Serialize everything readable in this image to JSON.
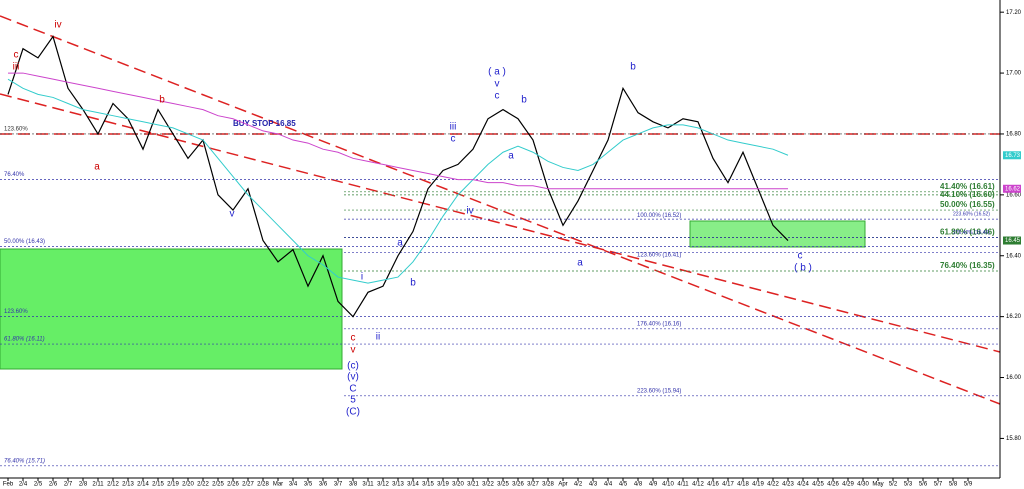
{
  "chart_data": {
    "type": "line",
    "categories": [
      "Feb",
      "2/4",
      "2/5",
      "2/6",
      "2/7",
      "2/8",
      "2/11",
      "2/12",
      "2/13",
      "2/14",
      "2/15",
      "2/19",
      "2/20",
      "2/22",
      "2/25",
      "2/26",
      "2/27",
      "2/28",
      "Mar",
      "3/4",
      "3/5",
      "3/6",
      "3/7",
      "3/8",
      "3/11",
      "3/12",
      "3/13",
      "3/14",
      "3/15",
      "3/19",
      "3/20",
      "3/21",
      "3/22",
      "3/25",
      "3/26",
      "3/27",
      "3/28",
      "Apr",
      "4/2",
      "4/3",
      "4/4",
      "4/5",
      "4/8",
      "4/9",
      "4/10",
      "4/11",
      "4/12",
      "4/16",
      "4/17",
      "4/18",
      "4/19",
      "4/22",
      "4/23",
      "4/24",
      "4/25",
      "4/26",
      "4/29",
      "4/30",
      "May",
      "5/2",
      "5/3",
      "5/6",
      "5/7",
      "5/8",
      "5/9"
    ],
    "series": [
      {
        "color": "#000000",
        "values": [
          16.93,
          17.08,
          17.05,
          17.12,
          16.95,
          16.88,
          16.8,
          16.9,
          16.85,
          16.75,
          16.88,
          16.8,
          16.72,
          16.78,
          16.6,
          16.55,
          16.62,
          16.45,
          16.38,
          16.42,
          16.3,
          16.4,
          16.25,
          16.2,
          16.28,
          16.3,
          16.4,
          16.48,
          16.62,
          16.68,
          16.7,
          16.75,
          16.85,
          16.88,
          16.85,
          16.78,
          16.62,
          16.5,
          16.58,
          16.68,
          16.78,
          16.95,
          16.87,
          16.84,
          16.82,
          16.85,
          16.84,
          16.72,
          16.64,
          16.74,
          16.62,
          16.5,
          16.45,
          null,
          null,
          null,
          null,
          null,
          null,
          null,
          null,
          null,
          null,
          null,
          null
        ]
      },
      {
        "color": "#33cccc",
        "values": [
          16.98,
          16.95,
          16.93,
          16.92,
          16.9,
          16.88,
          16.87,
          16.86,
          16.85,
          16.84,
          16.83,
          16.82,
          16.8,
          16.78,
          16.72,
          16.66,
          16.6,
          16.55,
          16.5,
          16.45,
          16.4,
          16.37,
          16.33,
          16.32,
          16.31,
          16.32,
          16.33,
          16.38,
          16.45,
          16.53,
          16.6,
          16.65,
          16.7,
          16.74,
          16.76,
          16.74,
          16.71,
          16.69,
          16.68,
          16.7,
          16.74,
          16.78,
          16.8,
          16.82,
          16.83,
          16.83,
          16.82,
          16.8,
          16.78,
          16.77,
          16.76,
          16.75,
          16.73,
          null,
          null,
          null,
          null,
          null,
          null,
          null,
          null,
          null,
          null,
          null,
          null
        ]
      },
      {
        "color": "#cc44cc",
        "values": [
          17.0,
          17.0,
          16.99,
          16.98,
          16.97,
          16.96,
          16.95,
          16.94,
          16.93,
          16.92,
          16.91,
          16.9,
          16.89,
          16.88,
          16.86,
          16.85,
          16.83,
          16.81,
          16.8,
          16.78,
          16.77,
          16.75,
          16.74,
          16.72,
          16.71,
          16.7,
          16.69,
          16.68,
          16.67,
          16.66,
          16.65,
          16.65,
          16.64,
          16.64,
          16.63,
          16.63,
          16.62,
          16.62,
          16.62,
          16.62,
          16.62,
          16.62,
          16.62,
          16.62,
          16.62,
          16.62,
          16.62,
          16.62,
          16.62,
          16.62,
          16.62,
          16.62,
          16.62,
          null,
          null,
          null,
          null,
          null,
          null,
          null,
          null,
          null,
          null,
          null,
          null
        ]
      }
    ],
    "ylim": [
      15.67,
      17.24
    ],
    "yticks": [
      {
        "value": 15.8,
        "label": "15.80"
      },
      {
        "value": 16,
        "label": "16.00"
      },
      {
        "value": 16.2,
        "label": "16.20"
      },
      {
        "value": 16.4,
        "label": "16.40"
      },
      {
        "value": 16.6,
        "label": "16.60"
      },
      {
        "value": 16.8,
        "label": "16.80"
      },
      {
        "value": 17,
        "label": "17.00"
      },
      {
        "value": 17.2,
        "label": "17.20"
      }
    ],
    "levels": [
      {
        "label": "123.60%",
        "value": 16.8,
        "color": "#333333"
      },
      {
        "label": "76.40%",
        "value": 16.65,
        "color": "#3333aa"
      },
      {
        "label": "50.00% (16.43)",
        "value": 16.43,
        "color": "#3333aa"
      },
      {
        "label": "123.60%",
        "value": 16.2,
        "color": "#3333aa"
      },
      {
        "label": "61.80% (16.11)",
        "value": 16.11,
        "color": "#3333aa"
      },
      {
        "label": "76.40% (15.71)",
        "value": 15.71,
        "color": "#3333aa"
      },
      {
        "label": "41.40% (16.61)",
        "value": 16.61,
        "color": "#2e7d32"
      },
      {
        "label": "44.10% (16.60)",
        "value": 16.6,
        "color": "#2e7d32"
      },
      {
        "label": "50.00% (16.55)",
        "value": 16.55,
        "color": "#2e7d32"
      },
      {
        "label": "223.60% (16.52)",
        "value": 16.52,
        "color": "#3333aa"
      },
      {
        "label": "100.00% (16.52)",
        "value": 16.52,
        "color": "#3333aa"
      },
      {
        "label": "61.80% (16.46)",
        "value": 16.46,
        "color": "#2e7d32"
      },
      {
        "label": "276.40% (16.46)",
        "value": 16.46,
        "color": "#3333aa"
      },
      {
        "label": "123.60% (16.41)",
        "value": 16.41,
        "color": "#3333aa"
      },
      {
        "label": "76.40% (16.35)",
        "value": 16.35,
        "color": "#2e7d32"
      },
      {
        "label": "176.40% (16.16)",
        "value": 16.16,
        "color": "#3333aa"
      },
      {
        "label": "223.60% (15.94)",
        "value": 15.94,
        "color": "#3333aa"
      }
    ],
    "price_tags": [
      {
        "label": "16.73",
        "value": 16.73,
        "color": "#33cccc"
      },
      {
        "label": "16.62",
        "value": 16.62,
        "color": "#cc44cc"
      },
      {
        "label": "16.45",
        "value": 16.45,
        "color": "#2e7d32"
      }
    ],
    "annotations": [
      "BUY STOP 16.85"
    ],
    "wave_labels": [
      "iv",
      "c",
      "iii",
      "a",
      "b",
      "v",
      "iii",
      "c",
      "iv",
      "( a )",
      "v",
      "c",
      "b",
      "a",
      "a",
      "b",
      "i",
      "ii",
      "c",
      "v",
      "(c)",
      "(v)",
      "C",
      "5",
      "(C)",
      "a",
      "b",
      "c",
      "( b )"
    ]
  }
}
